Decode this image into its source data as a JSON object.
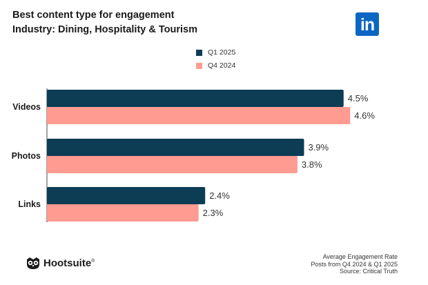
{
  "header": {
    "title": "Best content type for engagement",
    "subtitle": "Industry: Dining, Hospitality & Tourism",
    "linkedin_logo": "in"
  },
  "colors": {
    "q1": "#0d3c55",
    "q4": "#ff9b91"
  },
  "chart_data": {
    "type": "bar",
    "orientation": "horizontal",
    "title": "Best content type for engagement",
    "subtitle": "Industry: Dining, Hospitality & Tourism",
    "categories": [
      "Videos",
      "Photos",
      "Links"
    ],
    "series": [
      {
        "name": "Q1 2025",
        "values": [
          4.5,
          3.9,
          2.4
        ],
        "labels": [
          "4.5%",
          "3.9%",
          "2.4%"
        ]
      },
      {
        "name": "Q4 2024",
        "values": [
          4.6,
          3.8,
          2.3
        ],
        "labels": [
          "4.6%",
          "3.8%",
          "2.3%"
        ]
      }
    ],
    "xlabel": "",
    "ylabel": "",
    "unit": "%",
    "legend": "top-center",
    "grid": false
  },
  "footer": {
    "brand": "Hootsuite",
    "brand_mark": "®",
    "note_line1": "Average Engagement Rate",
    "note_line2": "Posts from Q4 2024 & Q1 2025",
    "note_line3": "Source: Critical Truth"
  }
}
